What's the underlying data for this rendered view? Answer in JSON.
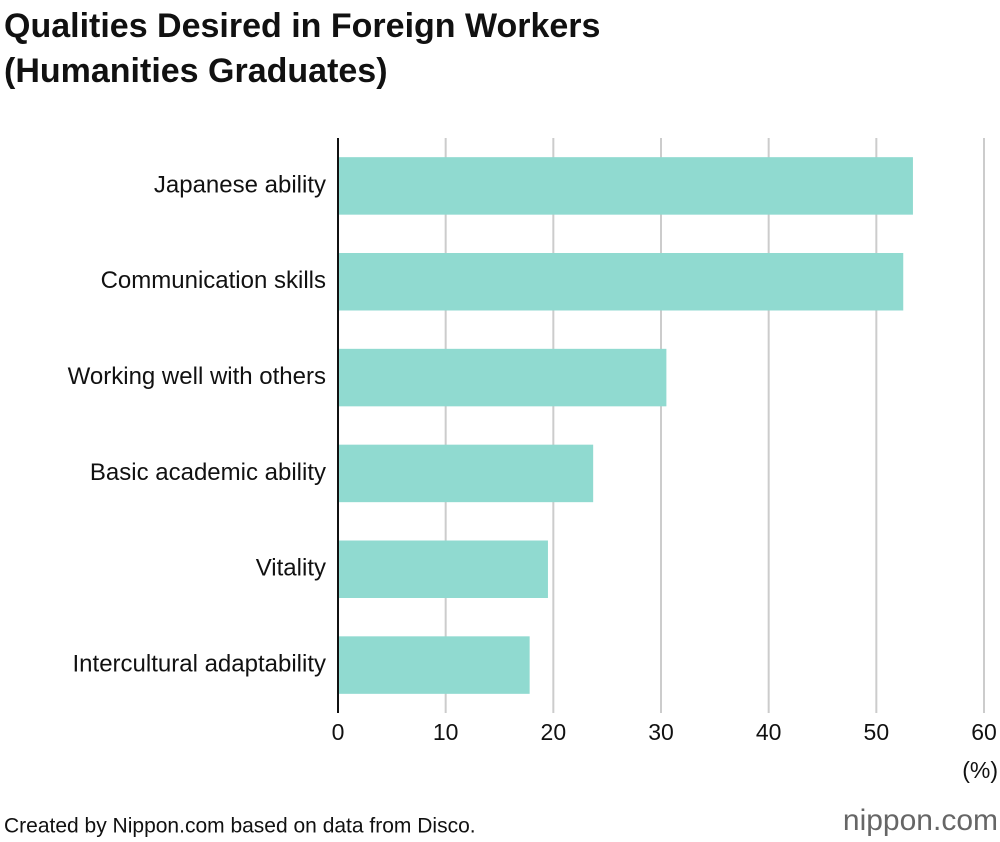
{
  "chart_data": {
    "type": "bar",
    "orientation": "horizontal",
    "title": "Qualities Desired in Foreign Workers",
    "subtitle": "(Humanities Graduates)",
    "categories": [
      "Japanese ability",
      "Communication skills",
      "Working well with others",
      "Basic academic ability",
      "Vitality",
      "Intercultural adaptability"
    ],
    "values": [
      53.4,
      52.5,
      30.5,
      23.7,
      19.5,
      17.8
    ],
    "color": "#90dad0",
    "xlim": [
      0,
      60
    ],
    "xticks": [
      0,
      10,
      20,
      30,
      40,
      50,
      60
    ],
    "x_label": "(%)",
    "grid": true,
    "source": "Created by Nippon.com based on data from Disco.",
    "logo": "nippon.com"
  }
}
